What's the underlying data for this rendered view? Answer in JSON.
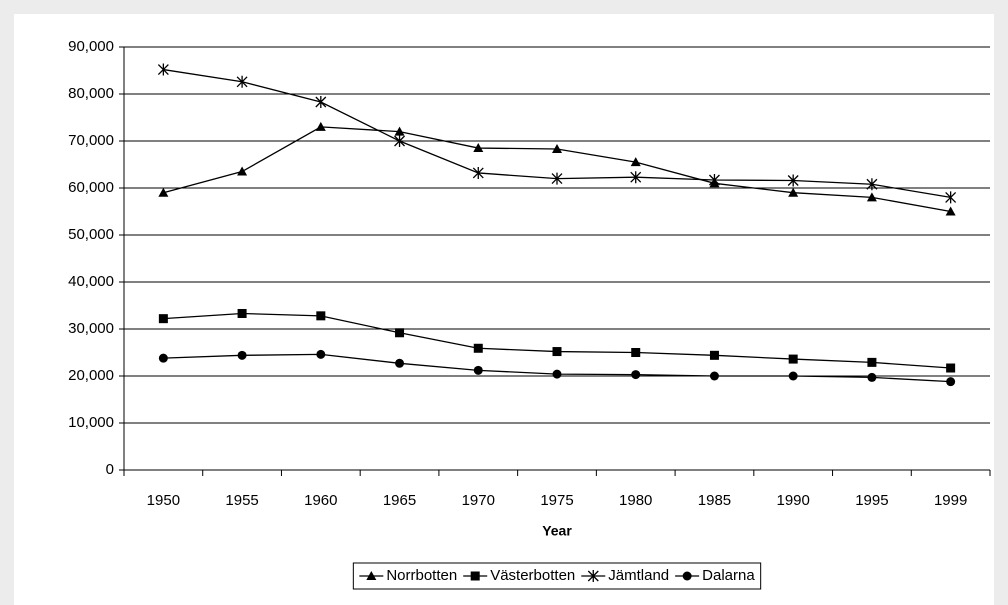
{
  "chart_data": {
    "type": "line",
    "x_label": "Year",
    "categories": [
      "1950",
      "1955",
      "1960",
      "1965",
      "1970",
      "1975",
      "1980",
      "1985",
      "1990",
      "1995",
      "1999"
    ],
    "series": [
      {
        "name": "Norrbotten",
        "color": "#000000",
        "marker": "triangle",
        "values": [
          59000,
          63500,
          73000,
          72000,
          68500,
          68300,
          65500,
          61000,
          59000,
          58000,
          55000
        ]
      },
      {
        "name": "Västerbotten",
        "color": "#000000",
        "marker": "square",
        "values": [
          32200,
          33300,
          32800,
          29200,
          25900,
          25200,
          25000,
          24400,
          23600,
          22900,
          21700
        ]
      },
      {
        "name": "Jämtland",
        "color": "#000000",
        "marker": "asterisk",
        "values": [
          85200,
          82600,
          78300,
          70000,
          63200,
          62000,
          62300,
          61700,
          61600,
          60800,
          58000
        ]
      },
      {
        "name": "Dalarna",
        "color": "#000000",
        "marker": "circle",
        "values": [
          23800,
          24400,
          24600,
          22700,
          21200,
          20400,
          20300,
          20000,
          20000,
          19700,
          18800
        ]
      }
    ],
    "ylim": [
      0,
      90000
    ],
    "yticks": [
      0,
      {
        "value": 10000,
        "label": "10,000"
      },
      {
        "value": 20000,
        "label": "20,000"
      },
      {
        "value": 30000,
        "label": "30,000"
      },
      {
        "value": 40000,
        "label": "40,000"
      },
      {
        "value": 50000,
        "label": "50,000"
      },
      {
        "value": 60000,
        "label": "60,000"
      },
      {
        "value": 70000,
        "label": "70,000"
      },
      {
        "value": 80000,
        "label": "80,000"
      },
      {
        "value": 90000,
        "label": "90,000"
      }
    ],
    "grid": true,
    "legend": "bottom"
  }
}
